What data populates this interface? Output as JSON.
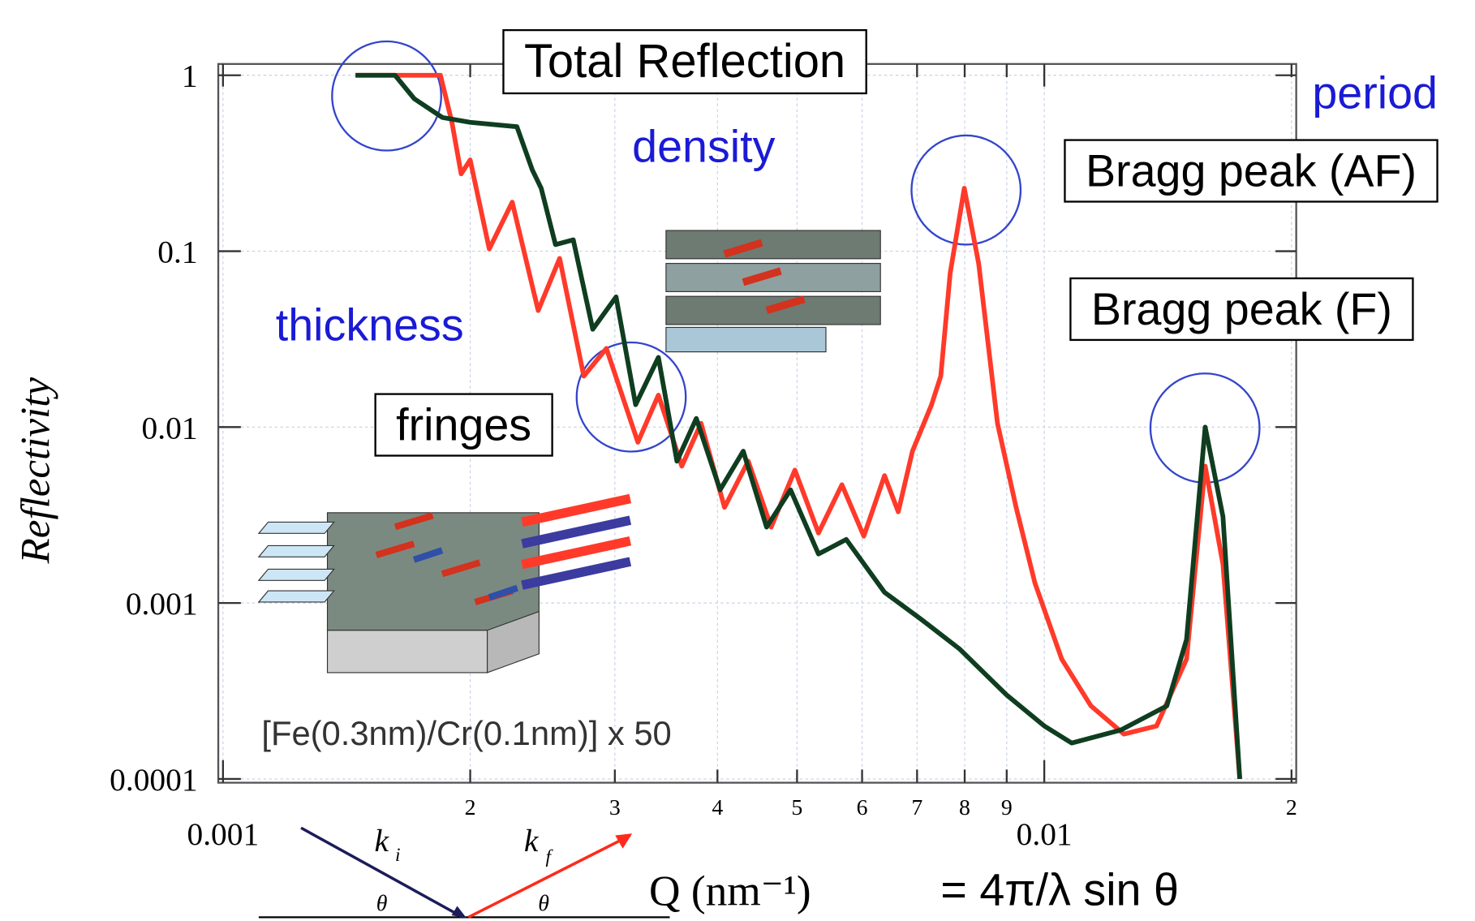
{
  "chart_data": {
    "type": "line",
    "xlabel": "Q (nm⁻¹)",
    "ylabel": "Reflectivity",
    "formula": "= 4π/λ sin θ",
    "log_x": true,
    "log_y": true,
    "grid": true,
    "xlim": [
      0.001,
      0.02
    ],
    "ylim": [
      0.0001,
      1
    ],
    "xticks": [
      {
        "value": 0.001,
        "label": "0.001"
      },
      {
        "value": 0.002,
        "label": "2"
      },
      {
        "value": 0.003,
        "label": "3"
      },
      {
        "value": 0.004,
        "label": "4"
      },
      {
        "value": 0.005,
        "label": "5"
      },
      {
        "value": 0.006,
        "label": "6"
      },
      {
        "value": 0.007,
        "label": "7"
      },
      {
        "value": 0.008,
        "label": "8"
      },
      {
        "value": 0.009,
        "label": "9"
      },
      {
        "value": 0.01,
        "label": "0.01"
      },
      {
        "value": 0.02,
        "label": "2"
      }
    ],
    "yticks": [
      1,
      0.1,
      0.01,
      0.001,
      0.0001
    ],
    "series": [
      {
        "color": "#ff3a2a",
        "x": [
          0.00145,
          0.00184,
          0.0019,
          0.00195,
          0.002,
          0.00211,
          0.00225,
          0.00242,
          0.00257,
          0.00275,
          0.00293,
          0.0032,
          0.00339,
          0.00362,
          0.00382,
          0.00408,
          0.00436,
          0.00465,
          0.00497,
          0.00531,
          0.00567,
          0.00603,
          0.00639,
          0.00664,
          0.00691,
          0.00729,
          0.00748,
          0.00768,
          0.00799,
          0.00832,
          0.00877,
          0.00924,
          0.00974,
          0.0105,
          0.0114,
          0.0125,
          0.0137,
          0.0149,
          0.0157,
          0.0165,
          0.0173
        ],
        "values": [
          1,
          1,
          0.54,
          0.275,
          0.33,
          0.103,
          0.19,
          0.046,
          0.091,
          0.0195,
          0.028,
          0.0082,
          0.0152,
          0.006,
          0.0105,
          0.0035,
          0.0064,
          0.0027,
          0.0057,
          0.0025,
          0.0047,
          0.0024,
          0.0053,
          0.0033,
          0.0073,
          0.0134,
          0.0195,
          0.075,
          0.228,
          0.085,
          0.0105,
          0.0035,
          0.0013,
          0.00048,
          0.00026,
          0.00018,
          0.0002,
          0.00048,
          0.006,
          0.00166,
          0.0001
        ]
      },
      {
        "color": "#0f3d20",
        "x": [
          0.00145,
          0.00162,
          0.00171,
          0.00185,
          0.002,
          0.00228,
          0.00238,
          0.00244,
          0.00254,
          0.00267,
          0.00282,
          0.00301,
          0.00318,
          0.00339,
          0.00357,
          0.00377,
          0.00403,
          0.0043,
          0.00459,
          0.00491,
          0.00531,
          0.00574,
          0.00639,
          0.0071,
          0.00788,
          0.009,
          0.01,
          0.0108,
          0.0124,
          0.0141,
          0.0149,
          0.0157,
          0.0165,
          0.0173
        ],
        "values": [
          1,
          1,
          0.735,
          0.575,
          0.54,
          0.51,
          0.29,
          0.228,
          0.109,
          0.116,
          0.036,
          0.055,
          0.0134,
          0.0249,
          0.0064,
          0.0112,
          0.0044,
          0.0073,
          0.0027,
          0.0044,
          0.0019,
          0.0023,
          0.00115,
          0.0008,
          0.00055,
          0.0003,
          0.0002,
          0.00016,
          0.00019,
          0.00026,
          0.00062,
          0.01,
          0.0031,
          0.0001
        ]
      }
    ],
    "annotations": [
      "Total Reflection",
      "period",
      "density",
      "Bragg peak (AF)",
      "Bragg peak (F)",
      "thickness",
      "fringes",
      "[Fe(0.3nm)/Cr(0.1nm)] x 50"
    ],
    "diagram_labels": [
      "k",
      "i",
      "k",
      "f",
      "θ",
      "θ"
    ]
  }
}
